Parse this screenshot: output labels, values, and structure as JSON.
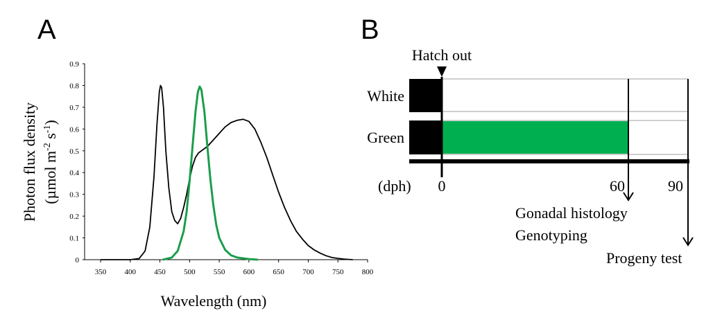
{
  "panel_a_label": "A",
  "panel_b_label": "B",
  "chart_data": {
    "type": "line",
    "xlabel": "Wavelength (nm)",
    "ylabel_line1": "Photon flux density",
    "ylabel_line2_prefix": "(µmol m",
    "ylabel_line2_sup1": "-2",
    "ylabel_line2_mid": " s",
    "ylabel_line2_sup2": "-1",
    "ylabel_line2_suffix": ")",
    "xlim": [
      350,
      800
    ],
    "ylim": [
      0,
      0.9
    ],
    "x_ticks": [
      "350",
      "400",
      "450",
      "500",
      "550",
      "600",
      "650",
      "700",
      "750",
      "800"
    ],
    "y_ticks": [
      "0",
      "0.1",
      "0.2",
      "0.3",
      "0.4",
      "0.5",
      "0.6",
      "0.7",
      "0.8",
      "0.9"
    ],
    "series": [
      {
        "name": "White",
        "color": "#000000",
        "points": [
          [
            350,
            0
          ],
          [
            400,
            0
          ],
          [
            415,
            0.005
          ],
          [
            425,
            0.04
          ],
          [
            433,
            0.15
          ],
          [
            440,
            0.38
          ],
          [
            445,
            0.62
          ],
          [
            449,
            0.77
          ],
          [
            451,
            0.8
          ],
          [
            453,
            0.79
          ],
          [
            456,
            0.7
          ],
          [
            460,
            0.5
          ],
          [
            465,
            0.33
          ],
          [
            470,
            0.22
          ],
          [
            475,
            0.18
          ],
          [
            480,
            0.165
          ],
          [
            485,
            0.19
          ],
          [
            490,
            0.24
          ],
          [
            495,
            0.3
          ],
          [
            500,
            0.37
          ],
          [
            505,
            0.43
          ],
          [
            510,
            0.47
          ],
          [
            515,
            0.49
          ],
          [
            520,
            0.5
          ],
          [
            530,
            0.52
          ],
          [
            540,
            0.55
          ],
          [
            550,
            0.58
          ],
          [
            560,
            0.61
          ],
          [
            570,
            0.63
          ],
          [
            580,
            0.64
          ],
          [
            590,
            0.645
          ],
          [
            600,
            0.635
          ],
          [
            610,
            0.6
          ],
          [
            620,
            0.54
          ],
          [
            630,
            0.47
          ],
          [
            640,
            0.39
          ],
          [
            650,
            0.31
          ],
          [
            660,
            0.24
          ],
          [
            670,
            0.18
          ],
          [
            680,
            0.13
          ],
          [
            690,
            0.095
          ],
          [
            700,
            0.065
          ],
          [
            710,
            0.045
          ],
          [
            720,
            0.03
          ],
          [
            730,
            0.018
          ],
          [
            740,
            0.01
          ],
          [
            750,
            0.006
          ],
          [
            760,
            0.003
          ],
          [
            775,
            0
          ]
        ]
      },
      {
        "name": "Green",
        "color": "#1a9e4a",
        "points": [
          [
            455,
            0
          ],
          [
            470,
            0.01
          ],
          [
            480,
            0.04
          ],
          [
            490,
            0.13
          ],
          [
            495,
            0.22
          ],
          [
            500,
            0.36
          ],
          [
            505,
            0.52
          ],
          [
            510,
            0.68
          ],
          [
            514,
            0.77
          ],
          [
            517,
            0.795
          ],
          [
            520,
            0.78
          ],
          [
            525,
            0.68
          ],
          [
            530,
            0.52
          ],
          [
            535,
            0.37
          ],
          [
            540,
            0.25
          ],
          [
            545,
            0.16
          ],
          [
            550,
            0.1
          ],
          [
            560,
            0.045
          ],
          [
            570,
            0.02
          ],
          [
            580,
            0.01
          ],
          [
            600,
            0.003
          ],
          [
            615,
            0
          ]
        ]
      }
    ]
  },
  "schedule": {
    "hatch_label": "Hatch out",
    "rows": [
      {
        "name": "White",
        "fill": "#ffffff"
      },
      {
        "name": "Green",
        "fill": "#00b050"
      }
    ],
    "unit_label": "(dph)",
    "day_labels": [
      "0",
      "60",
      "90"
    ],
    "day60_outcomes": [
      "Gonadal histology",
      "Genotyping"
    ],
    "day90_outcome": "Progeny test"
  }
}
